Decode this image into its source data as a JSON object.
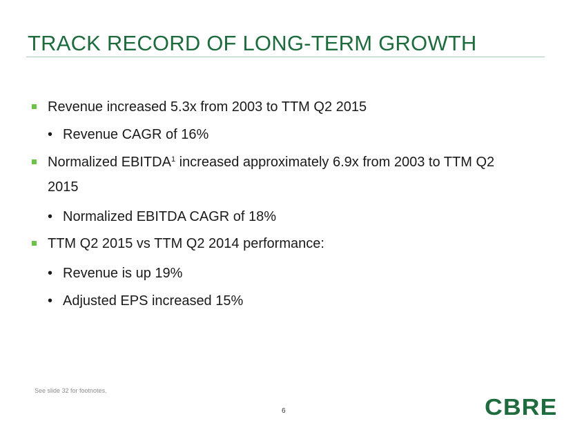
{
  "slide": {
    "title": "TRACK RECORD OF LONG-TERM GROWTH",
    "bullets": {
      "b1": "Revenue increased 5.3x from 2003 to TTM Q2 2015",
      "b1_1": "Revenue CAGR of 16%",
      "b2_pre": "Normalized EBITDA",
      "b2_sup": "1",
      "b2_post": " increased approximately 6.9x from 2003 to TTM Q2",
      "b2_cont": "2015",
      "b2_1": "Normalized EBITDA CAGR of 18%",
      "b3": "TTM Q2 2015 vs TTM Q2 2014 performance:",
      "b3_1": "Revenue is up 19%",
      "b3_2": "Adjusted EPS increased 15%"
    },
    "bullet_glyph": "•",
    "footnote": "See slide 32 for footnotes.",
    "page_number": "6",
    "logo_text": "CBRE"
  },
  "colors": {
    "title": "#1e6b3e",
    "square_bullet": "#6cc24a",
    "logo": "#1e6b3e"
  }
}
